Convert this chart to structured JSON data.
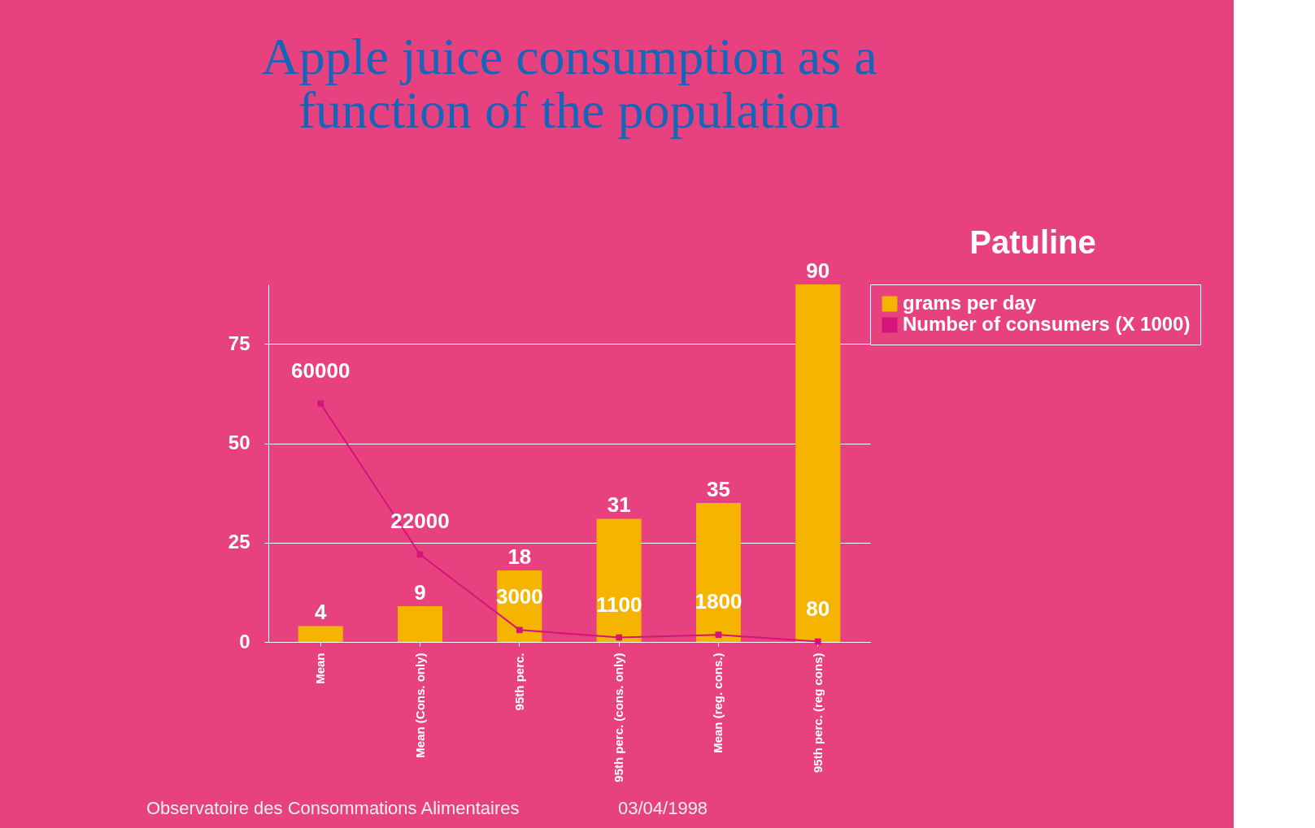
{
  "chart_data": {
    "type": "bar",
    "title": "Apple juice consumption as a function of the population",
    "categories": [
      "Mean",
      "Mean (Cons. only)",
      "95th perc.",
      "95th perc. (cons. only)",
      "Mean (reg. cons.)",
      "95th perc. (reg cons)"
    ],
    "series": [
      {
        "name": "grams per day",
        "color": "#f5b400",
        "values": [
          4,
          9,
          18,
          31,
          35,
          90
        ]
      },
      {
        "name": "Number of consumers (X 1000)",
        "type": "line",
        "axis": "y2",
        "color": "#d4147a",
        "marker": "square",
        "values": [
          60000,
          22000,
          3000,
          1100,
          1800,
          80
        ]
      }
    ],
    "ylim": [
      0,
      90
    ],
    "yticks": [
      0,
      25,
      50,
      75
    ],
    "y2lim": [
      0,
      90000
    ],
    "grid": "y",
    "legend": "right",
    "data_labels": true,
    "annotations": [
      "Patuline",
      "Observatoire des Consommations Alimentaires",
      "03/04/1998"
    ]
  }
}
